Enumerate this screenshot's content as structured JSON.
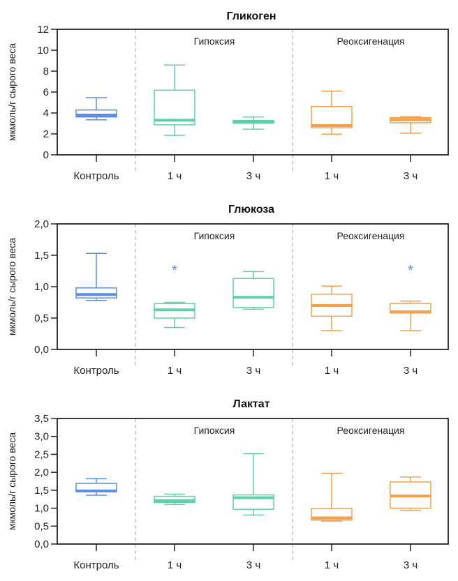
{
  "chart_data": [
    {
      "type": "boxplot",
      "title": "Гликоген",
      "ylabel": "мкмоль/г сырого веса",
      "ylim": [
        0,
        12
      ],
      "yticks": [
        "0",
        "2",
        "4",
        "6",
        "8",
        "10",
        "12"
      ],
      "ytick_values": [
        0,
        2,
        4,
        6,
        8,
        10,
        12
      ],
      "categories": [
        "Контроль",
        "1 ч",
        "3 ч",
        "1 ч",
        "3 ч"
      ],
      "sections": [
        "Гипоксия",
        "Реоксигенация"
      ],
      "boxes": [
        {
          "group": "control",
          "whisker_low": 3.35,
          "q1": 3.62,
          "median": 3.8,
          "q3": 4.29,
          "whisker_high": 5.47
        },
        {
          "group": "hypoxia",
          "whisker_low": 1.87,
          "q1": 2.87,
          "median": 3.31,
          "q3": 6.18,
          "whisker_high": 8.58
        },
        {
          "group": "hypoxia",
          "whisker_low": 2.45,
          "q1": 3.02,
          "median": 3.15,
          "q3": 3.29,
          "whisker_high": 3.62
        },
        {
          "group": "reoxygenation",
          "whisker_low": 1.98,
          "q1": 2.58,
          "median": 2.8,
          "q3": 4.62,
          "whisker_high": 6.09
        },
        {
          "group": "reoxygenation",
          "whisker_low": 2.07,
          "q1": 3.07,
          "median": 3.35,
          "q3": 3.55,
          "whisker_high": 3.64
        }
      ],
      "annotations": []
    },
    {
      "type": "boxplot",
      "title": "Глюкоза",
      "ylabel": "мкмоль/г сырого веса",
      "ylim": [
        0,
        2
      ],
      "yticks": [
        "0,0",
        "0,5",
        "1,0",
        "1,5",
        "2,0"
      ],
      "ytick_values": [
        0,
        0.5,
        1.0,
        1.5,
        2.0
      ],
      "categories": [
        "Контроль",
        "1 ч",
        "3 ч",
        "1 ч",
        "3 ч"
      ],
      "sections": [
        "Гипоксия",
        "Реоксигенация"
      ],
      "boxes": [
        {
          "group": "control",
          "whisker_low": 0.78,
          "q1": 0.82,
          "median": 0.875,
          "q3": 0.98,
          "whisker_high": 1.53
        },
        {
          "group": "hypoxia",
          "whisker_low": 0.35,
          "q1": 0.5,
          "median": 0.63,
          "q3": 0.73,
          "whisker_high": 0.75
        },
        {
          "group": "hypoxia",
          "whisker_low": 0.64,
          "q1": 0.67,
          "median": 0.83,
          "q3": 1.13,
          "whisker_high": 1.24
        },
        {
          "group": "reoxygenation",
          "whisker_low": 0.3,
          "q1": 0.53,
          "median": 0.7,
          "q3": 0.88,
          "whisker_high": 1.01
        },
        {
          "group": "reoxygenation",
          "whisker_low": 0.3,
          "q1": 0.58,
          "median": 0.6,
          "q3": 0.73,
          "whisker_high": 0.77
        }
      ],
      "annotations": [
        {
          "box_index": 1,
          "text": "*",
          "y": 1.3
        },
        {
          "box_index": 4,
          "text": "*",
          "y": 1.3
        }
      ]
    },
    {
      "type": "boxplot",
      "title": "Лактат",
      "ylabel": "мкмоль/г сырого веса",
      "ylim": [
        0,
        3.5
      ],
      "yticks": [
        "0,0",
        "0,5",
        "1,0",
        "1,5",
        "2,0",
        "2,5",
        "3,0",
        "3,5"
      ],
      "ytick_values": [
        0,
        0.5,
        1.0,
        1.5,
        2.0,
        2.5,
        3.0,
        3.5
      ],
      "categories": [
        "Контроль",
        "1 ч",
        "3 ч",
        "1 ч",
        "3 ч"
      ],
      "sections": [
        "Гипоксия",
        "Реоксигенация"
      ],
      "boxes": [
        {
          "group": "control",
          "whisker_low": 1.36,
          "q1": 1.46,
          "median": 1.48,
          "q3": 1.69,
          "whisker_high": 1.82
        },
        {
          "group": "hypoxia",
          "whisker_low": 1.1,
          "q1": 1.16,
          "median": 1.21,
          "q3": 1.33,
          "whisker_high": 1.39
        },
        {
          "group": "hypoxia",
          "whisker_low": 0.81,
          "q1": 0.97,
          "median": 1.29,
          "q3": 1.37,
          "whisker_high": 2.52
        },
        {
          "group": "reoxygenation",
          "whisker_low": 0.64,
          "q1": 0.67,
          "median": 0.73,
          "q3": 0.99,
          "whisker_high": 1.97
        },
        {
          "group": "reoxygenation",
          "whisker_low": 0.94,
          "q1": 1.0,
          "median": 1.34,
          "q3": 1.73,
          "whisker_high": 1.87
        }
      ],
      "annotations": []
    }
  ],
  "colors": {
    "control": "#5b8ee6",
    "hypoxia": "#5fcfa5",
    "reoxygenation": "#f7a04a",
    "annotation": "#5b8ee6"
  }
}
